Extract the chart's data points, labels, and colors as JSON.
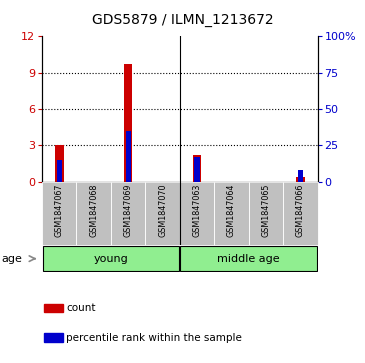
{
  "title": "GDS5879 / ILMN_1213672",
  "samples": [
    "GSM1847067",
    "GSM1847068",
    "GSM1847069",
    "GSM1847070",
    "GSM1847063",
    "GSM1847064",
    "GSM1847065",
    "GSM1847066"
  ],
  "red_counts": [
    3.0,
    0.0,
    9.7,
    0.0,
    2.2,
    0.0,
    0.0,
    0.4
  ],
  "blue_percentiles": [
    15.0,
    0.0,
    35.0,
    0.0,
    17.0,
    0.0,
    0.0,
    8.0
  ],
  "ylim_left": [
    0,
    12
  ],
  "ylim_right": [
    0,
    100
  ],
  "yticks_left": [
    0,
    3,
    6,
    9,
    12
  ],
  "yticks_right": [
    0,
    25,
    50,
    75,
    100
  ],
  "red_color": "#CC0000",
  "blue_color": "#0000CC",
  "bar_bg_color": "#C0C0C0",
  "group_color": "#90EE90",
  "age_label": "age",
  "legend_count_label": "count",
  "legend_pct_label": "percentile rank within the sample",
  "group_labels": [
    "young",
    "middle age"
  ],
  "group_splits": [
    3.5
  ],
  "fig_width": 3.65,
  "fig_height": 3.63,
  "dpi": 100
}
